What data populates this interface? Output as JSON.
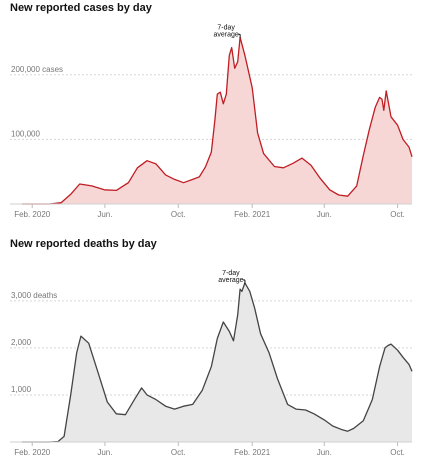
{
  "chart_data": [
    {
      "type": "area",
      "title": "New reported cases by day",
      "annotation": "7-day average",
      "ylim": [
        0,
        260000
      ],
      "x_domain": [
        "2020-01-15",
        "2021-10-25"
      ],
      "y_ticks": [
        {
          "value": 100000,
          "label": "100,000"
        },
        {
          "value": 200000,
          "label": "200,000 cases"
        }
      ],
      "x_ticks": [
        {
          "date": "2020-02-01",
          "label": "Feb. 2020"
        },
        {
          "date": "2020-06-01",
          "label": "Jun."
        },
        {
          "date": "2020-10-01",
          "label": "Oct."
        },
        {
          "date": "2021-02-01",
          "label": "Feb. 2021"
        },
        {
          "date": "2021-06-01",
          "label": "Jun."
        },
        {
          "date": "2021-10-01",
          "label": "Oct."
        }
      ],
      "grid": "horizontal dashed",
      "colors": {
        "line": "#bf1e24",
        "fill": "#f7d7d5"
      },
      "series": [
        {
          "x": [
            "2020-01-15",
            "2020-03-01",
            "2020-03-20",
            "2020-04-05",
            "2020-04-20",
            "2020-05-10",
            "2020-05-31",
            "2020-06-20",
            "2020-07-10",
            "2020-07-25",
            "2020-08-10",
            "2020-08-25",
            "2020-09-10",
            "2020-09-25",
            "2020-10-10",
            "2020-10-25",
            "2020-11-05",
            "2020-11-15",
            "2020-11-25",
            "2020-12-01",
            "2020-12-05",
            "2020-12-10",
            "2020-12-15",
            "2020-12-20",
            "2020-12-25",
            "2020-12-29",
            "2021-01-03",
            "2021-01-08",
            "2021-01-12",
            "2021-01-20",
            "2021-02-01",
            "2021-02-10",
            "2021-02-20",
            "2021-03-10",
            "2021-03-25",
            "2021-04-10",
            "2021-04-25",
            "2021-05-10",
            "2021-05-25",
            "2021-06-10",
            "2021-06-25",
            "2021-07-10",
            "2021-07-25",
            "2021-08-05",
            "2021-08-15",
            "2021-08-25",
            "2021-09-01",
            "2021-09-05",
            "2021-09-08",
            "2021-09-12",
            "2021-09-20",
            "2021-10-01",
            "2021-10-10",
            "2021-10-20",
            "2021-10-25"
          ],
          "values": [
            0,
            0,
            2000,
            15000,
            31000,
            28000,
            22000,
            21000,
            33000,
            56000,
            67000,
            62000,
            45000,
            38000,
            33000,
            38000,
            42000,
            57000,
            80000,
            130000,
            170000,
            173000,
            155000,
            170000,
            230000,
            242000,
            210000,
            220000,
            258000,
            230000,
            180000,
            110000,
            78000,
            58000,
            56000,
            63000,
            71000,
            60000,
            40000,
            22000,
            14000,
            12000,
            28000,
            75000,
            115000,
            150000,
            165000,
            162000,
            145000,
            175000,
            135000,
            122000,
            100000,
            88000,
            73000
          ]
        }
      ]
    },
    {
      "type": "area",
      "title": "New reported deaths by day",
      "annotation": "7-day average",
      "ylim": [
        0,
        3400
      ],
      "x_domain": [
        "2020-01-15",
        "2021-10-25"
      ],
      "y_ticks": [
        {
          "value": 1000,
          "label": "1,000"
        },
        {
          "value": 2000,
          "label": "2,000"
        },
        {
          "value": 3000,
          "label": "3,000 deaths"
        }
      ],
      "x_ticks": [
        {
          "date": "2020-02-01",
          "label": "Feb. 2020"
        },
        {
          "date": "2020-06-01",
          "label": "Jun."
        },
        {
          "date": "2020-10-01",
          "label": "Oct."
        },
        {
          "date": "2021-02-01",
          "label": "Feb. 2021"
        },
        {
          "date": "2021-06-01",
          "label": "Jun."
        },
        {
          "date": "2021-10-01",
          "label": "Oct."
        }
      ],
      "grid": "horizontal dashed",
      "colors": {
        "line": "#444444",
        "fill": "#e8e8e8"
      },
      "series": [
        {
          "x": [
            "2020-01-15",
            "2020-03-01",
            "2020-03-15",
            "2020-03-25",
            "2020-04-05",
            "2020-04-15",
            "2020-04-22",
            "2020-05-05",
            "2020-05-20",
            "2020-06-05",
            "2020-06-20",
            "2020-07-05",
            "2020-07-20",
            "2020-08-01",
            "2020-08-10",
            "2020-08-25",
            "2020-09-10",
            "2020-09-25",
            "2020-10-10",
            "2020-10-25",
            "2020-11-10",
            "2020-11-25",
            "2020-12-05",
            "2020-12-15",
            "2020-12-25",
            "2021-01-01",
            "2021-01-08",
            "2021-01-12",
            "2021-01-15",
            "2021-01-20",
            "2021-01-28",
            "2021-02-05",
            "2021-02-15",
            "2021-03-01",
            "2021-03-15",
            "2021-04-01",
            "2021-04-15",
            "2021-05-01",
            "2021-05-15",
            "2021-06-01",
            "2021-06-15",
            "2021-07-01",
            "2021-07-10",
            "2021-07-20",
            "2021-08-05",
            "2021-08-20",
            "2021-09-01",
            "2021-09-10",
            "2021-09-15",
            "2021-09-20",
            "2021-10-01",
            "2021-10-10",
            "2021-10-20",
            "2021-10-25"
          ],
          "values": [
            0,
            0,
            10,
            120,
            1000,
            1900,
            2250,
            2100,
            1500,
            850,
            600,
            580,
            900,
            1150,
            1000,
            900,
            760,
            700,
            760,
            800,
            1100,
            1600,
            2200,
            2550,
            2350,
            2150,
            2700,
            3250,
            3200,
            3380,
            3200,
            2850,
            2300,
            1900,
            1350,
            800,
            700,
            680,
            600,
            470,
            340,
            260,
            230,
            290,
            450,
            900,
            1600,
            2000,
            2050,
            2080,
            1950,
            1800,
            1650,
            1500
          ]
        }
      ]
    }
  ]
}
